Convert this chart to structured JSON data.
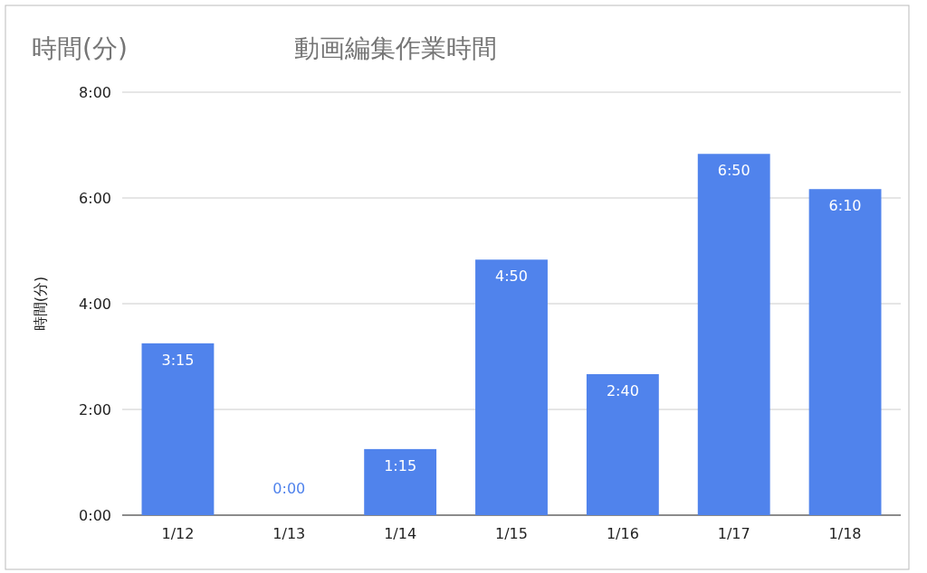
{
  "chart_data": {
    "type": "bar",
    "title": "動画編集作業時間",
    "ylabel": "時間(分)",
    "annotations": [
      "時間(分)"
    ],
    "categories": [
      "1/12",
      "1/13",
      "1/14",
      "1/15",
      "1/16",
      "1/17",
      "1/18"
    ],
    "values": [
      3.25,
      0,
      1.25,
      4.833,
      2.667,
      6.833,
      6.167
    ],
    "value_labels": [
      "3:15",
      "0:00",
      "1:15",
      "4:50",
      "2:40",
      "6:50",
      "6:10"
    ],
    "color": "#5083ec",
    "ylim": [
      0,
      8
    ],
    "yticks": [
      {
        "value": 0,
        "label": "0:00"
      },
      {
        "value": 2,
        "label": "2:00"
      },
      {
        "value": 4,
        "label": "4:00"
      },
      {
        "value": 6,
        "label": "6:00"
      },
      {
        "value": 8,
        "label": "8:00"
      }
    ],
    "grid": "y"
  }
}
